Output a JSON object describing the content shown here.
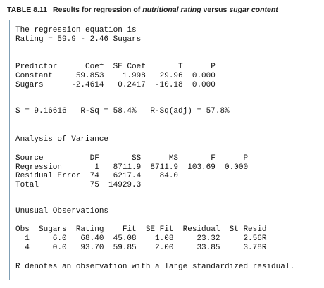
{
  "header": {
    "label": "TABLE 8.11",
    "caption": [
      "Results for regression of ",
      "nutritional rating",
      " versus ",
      "sugar content"
    ]
  },
  "output": {
    "blocks": [
      [
        "The regression equation is",
        "Rating = 59.9 - 2.46 Sugars"
      ],
      [
        "Predictor      Coef  SE Coef       T      P",
        "Constant     59.853    1.998   29.96  0.000",
        "Sugars      -2.4614   0.2417  -10.18  0.000"
      ],
      [
        "S = 9.16616   R-Sq = 58.4%   R-Sq(adj) = 57.8%"
      ],
      [
        "Analysis of Variance"
      ],
      [
        "Source          DF       SS      MS       F      P",
        "Regression       1   8711.9  8711.9  103.69  0.000",
        "Residual Error  74   6217.4    84.0",
        "Total           75  14929.3"
      ],
      [
        "Unusual Observations"
      ],
      [
        "Obs  Sugars  Rating    Fit  SE Fit  Residual  St Resid",
        "  1     6.0   68.40  45.08    1.08     23.32     2.56R",
        "  4     0.0   93.70  59.85    2.00     33.85     3.78R"
      ],
      [
        "R denotes an observation with a large standardized residual."
      ]
    ]
  }
}
